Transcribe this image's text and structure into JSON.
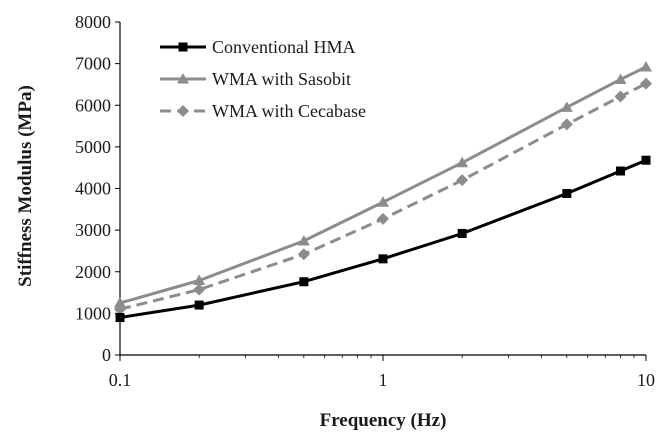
{
  "chart_data": {
    "type": "line",
    "title": "",
    "xlabel": "Frequency (Hz)",
    "ylabel": "Stiffness Modulus (MPa)",
    "x_scale": "log",
    "xlim": [
      0.1,
      10
    ],
    "ylim": [
      0,
      8000
    ],
    "x_ticks": [
      "0.1",
      "1",
      "10"
    ],
    "y_ticks": [
      "0",
      "1000",
      "2000",
      "3000",
      "4000",
      "5000",
      "6000",
      "7000",
      "8000"
    ],
    "grid": false,
    "legend_position": "top-left",
    "x": [
      0.1,
      0.2,
      0.5,
      1,
      2,
      5,
      8,
      10
    ],
    "series": [
      {
        "name": "Conventional HMA",
        "marker": "square",
        "color": "#000000",
        "dashed": false,
        "values": [
          900,
          1200,
          1760,
          2310,
          2920,
          3880,
          4420,
          4680
        ]
      },
      {
        "name": "WMA with Sasobit",
        "marker": "triangle",
        "color": "#8c8c8c",
        "dashed": false,
        "values": [
          1250,
          1790,
          2740,
          3670,
          4620,
          5950,
          6620,
          6920
        ]
      },
      {
        "name": "WMA with Cecabase",
        "marker": "diamond",
        "color": "#8c8c8c",
        "dashed": true,
        "values": [
          1100,
          1570,
          2420,
          3270,
          4200,
          5540,
          6210,
          6520
        ]
      }
    ]
  }
}
